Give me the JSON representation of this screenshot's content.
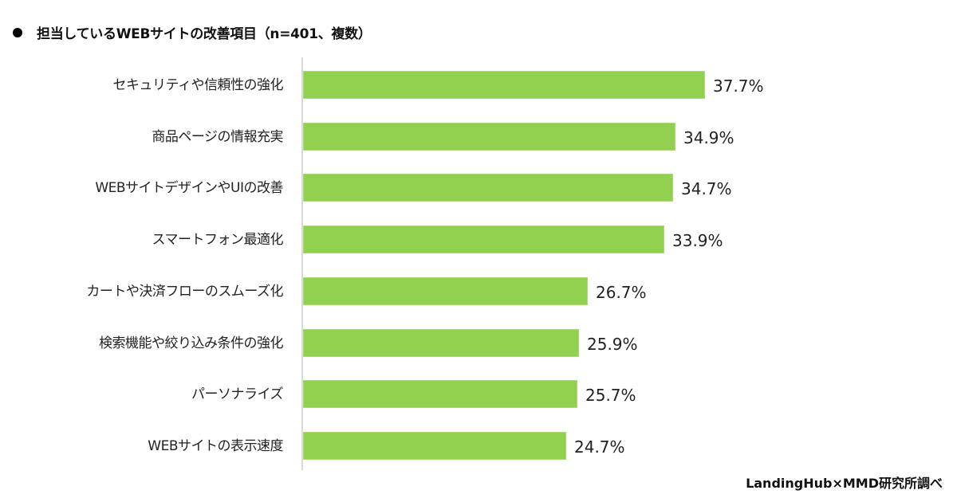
{
  "title": "担当しているWEBサイトの改善項目（n=401、複数）",
  "source": "LandingHub×MMD研究所調べ",
  "colors": {
    "bar": "#92d050",
    "axis": "#d9d9d9",
    "text": "#222222"
  },
  "chart_data": {
    "type": "bar",
    "orientation": "horizontal",
    "title": "担当しているWEBサイトの改善項目（n=401、複数）",
    "xlabel": "",
    "ylabel": "",
    "unit": "%",
    "grid": false,
    "legend": null,
    "categories": [
      "セキュリティや信頼性の強化",
      "商品ページの情報充実",
      "WEBサイトデザインやUIの改善",
      "スマートフォン最適化",
      "カートや決済フローのスムーズ化",
      "検索機能や絞り込み条件の強化",
      "パーソナライズ",
      "WEBサイトの表示速度"
    ],
    "values": [
      37.7,
      34.9,
      34.7,
      33.9,
      26.7,
      25.9,
      25.7,
      24.7
    ],
    "value_labels": [
      "37.7%",
      "34.9%",
      "34.7%",
      "33.9%",
      "26.7%",
      "25.9%",
      "25.7%",
      "24.7%"
    ],
    "annotations": [
      "LandingHub×MMD研究所調べ"
    ]
  }
}
